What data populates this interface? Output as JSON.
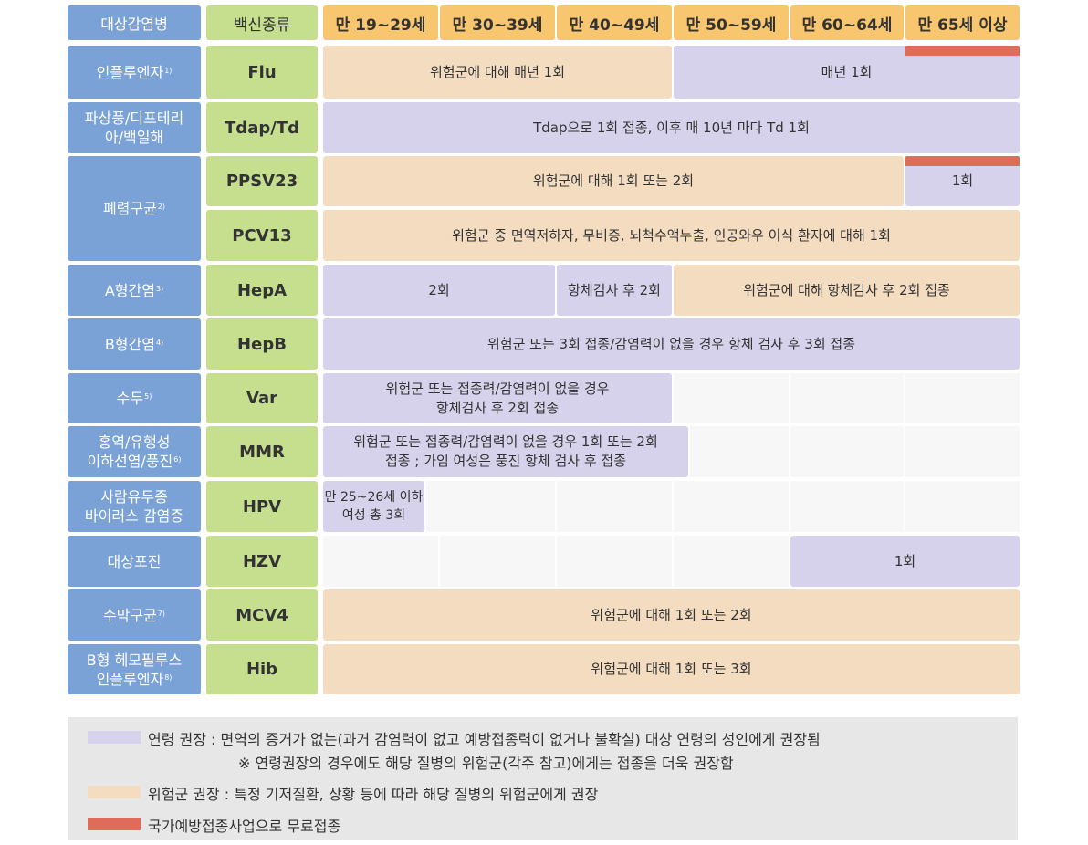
{
  "header": {
    "disease": "대상감염병",
    "vaccine": "백신종류",
    "ages": [
      "만 19~29세",
      "만 30~39세",
      "만 40~49세",
      "만 50~59세",
      "만 60~64세",
      "만 65세 이상"
    ]
  },
  "rows": {
    "flu": {
      "disease": "인플루엔자",
      "note": "1)",
      "vaccine": "Flu",
      "bar1": "위험군에 대해 매년 1회",
      "bar2": "매년 1회"
    },
    "tdap": {
      "disease_l1": "파상풍/디프테리",
      "disease_l2": "아/백일해",
      "vaccine": "Tdap/Td",
      "bar1": "Tdap으로 1회 접종, 이후 매 10년 마다 Td 1회"
    },
    "pneumo": {
      "disease": "폐렴구균",
      "note": "2)"
    },
    "ppsv": {
      "vaccine": "PPSV23",
      "bar1": "위험군에 대해 1회 또는 2회",
      "bar2": "1회"
    },
    "pcv": {
      "vaccine": "PCV13",
      "bar1": "위험군 중 면역저하자, 무비증, 뇌척수액누출, 인공와우 이식 환자에 대해 1회"
    },
    "hepa": {
      "disease": "A형간염",
      "note": "3)",
      "vaccine": "HepA",
      "bar1": "2회",
      "bar2": "항체검사 후 2회",
      "bar3": "위험군에 대해 항체검사 후 2회 접종"
    },
    "hepb": {
      "disease": "B형간염",
      "note": "4)",
      "vaccine": "HepB",
      "bar1": "위험군 또는 3회 접종/감염력이 없을 경우 항체 검사 후 3회 접종"
    },
    "var": {
      "disease": "수두",
      "note": "5)",
      "vaccine": "Var",
      "bar1_l1": "위험군 또는 접종력/감염력이 없을 경우",
      "bar1_l2": "항체검사 후 2회 접종"
    },
    "mmr": {
      "disease_l1": "홍역/유행성",
      "disease_l2": "이하선염/풍진",
      "note": "6)",
      "vaccine": "MMR",
      "bar1_l1": "위험군 또는 접종력/감염력이 없을 경우 1회 또는 2회",
      "bar1_l2": "접종 ; 가임 여성은 풍진 항체 검사 후 접종"
    },
    "hpv": {
      "disease_l1": "사람유두종",
      "disease_l2": "바이러스 감염증",
      "vaccine": "HPV",
      "bar1_l1": "만 25~26세 이하",
      "bar1_l2": "여성 총 3회"
    },
    "hzv": {
      "disease": "대상포진",
      "vaccine": "HZV",
      "bar1": "1회"
    },
    "mcv": {
      "disease": "수막구균",
      "note": "7)",
      "vaccine": "MCV4",
      "bar1": "위험군에 대해 1회 또는 2회"
    },
    "hib": {
      "disease_l1": "B형 헤모필루스",
      "disease_l2": "인플루엔자",
      "note": "8)",
      "vaccine": "Hib",
      "bar1": "위험군에 대해 1회 또는 3회"
    }
  },
  "legend": {
    "age_rec": "연령 권장 : 면역의 증거가 없는(과거 감염력이 없고 예방접종력이 없거나 불확실) 대상 연령의 성인에게 권장됨",
    "age_rec_note": "※ 연령권장의 경우에도 해당 질병의 위험군(각주 참고)에게는 접종을 더욱 권장함",
    "risk_rec": "위험군 권장 : 특정 기저질환, 상황 등에 따라 해당 질병의 위험군에게 권장",
    "free": "국가예방접종사업으로 무료접종"
  },
  "colors": {
    "disease_header": "#7AA2D6",
    "vaccine_header": "#C5DF8F",
    "age_header": "#F7C66E",
    "age_recommended": "#D6D2EB",
    "risk_recommended": "#F4DCC1",
    "free_program": "#DF6C5A"
  }
}
